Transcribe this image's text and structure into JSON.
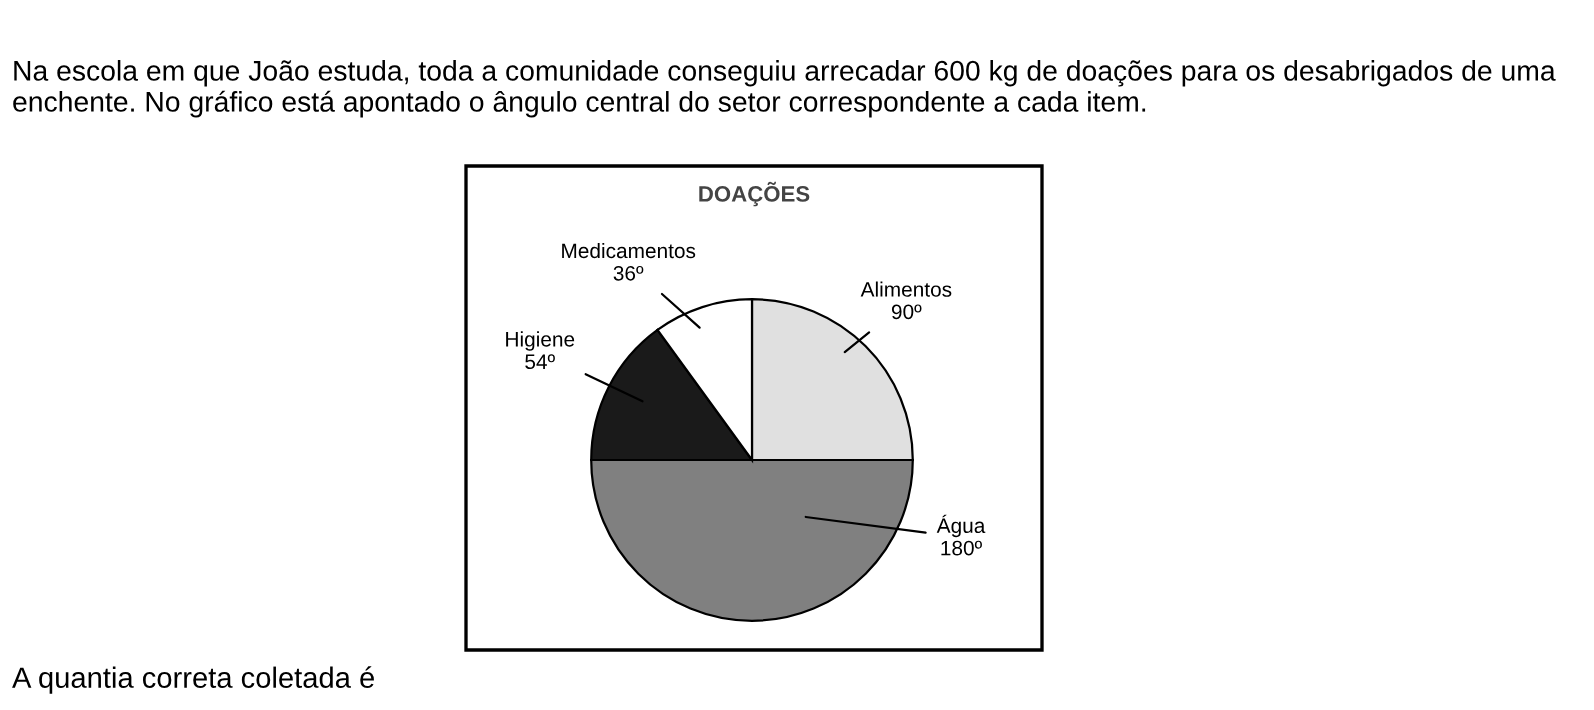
{
  "chart_data": {
    "type": "pie",
    "title": "DOAÇÕES",
    "categories": [
      "Alimentos",
      "Água",
      "Higiene",
      "Medicamentos"
    ],
    "values": [
      90,
      180,
      54,
      36
    ],
    "value_labels": [
      "90º",
      "180º",
      "54º",
      "36º"
    ],
    "colors": [
      "#e0e0e0",
      "#808080",
      "#1a1a1a",
      "#ffffff"
    ],
    "legend": false,
    "annotations": [
      "Na escola em que João estuda, toda a comunidade conseguiu arrecadar 600 kg de doações para os desabrigados de uma enchente. No gráfico está apontado o ângulo central do setor correspondente a cada item.",
      "A quantia correta coletada é"
    ]
  }
}
